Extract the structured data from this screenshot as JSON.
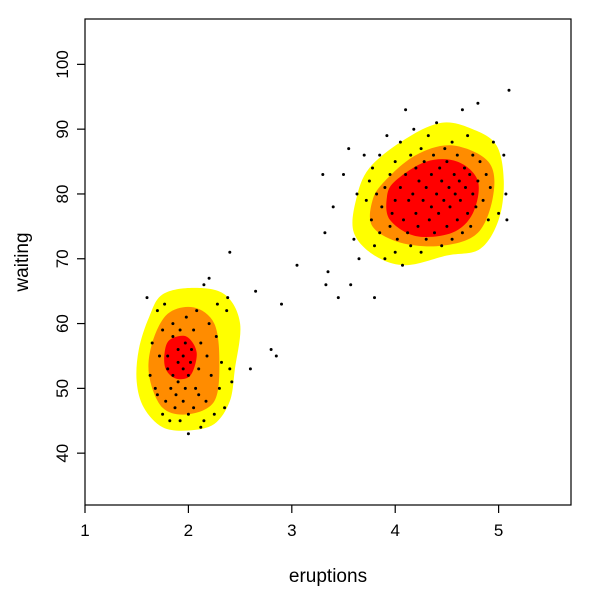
{
  "chart_data": {
    "type": "scatter",
    "subtype": "scatter with filled 2D density contours",
    "xlabel": "eruptions",
    "ylabel": "waiting",
    "xlim": [
      1,
      5.7
    ],
    "ylim": [
      32,
      107
    ],
    "x_ticks": [
      1,
      2,
      3,
      4,
      5
    ],
    "x_tick_labels": [
      "1",
      "2",
      "3",
      "4",
      "5"
    ],
    "y_ticks": [
      40,
      50,
      60,
      70,
      80,
      90,
      100
    ],
    "y_tick_labels": [
      "40",
      "50",
      "60",
      "70",
      "80",
      "90",
      "100"
    ],
    "grid": false,
    "legend": "none",
    "density_levels": [
      {
        "level": "outer",
        "color": "#ffff00"
      },
      {
        "level": "middle",
        "color": "#ff8c00"
      },
      {
        "level": "inner",
        "color": "#ff0000"
      }
    ],
    "clusters": [
      {
        "mode": [
          1.95,
          54.5
        ],
        "regions": {
          "outer": [
            [
              1.75,
              64.5
            ],
            [
              2.05,
              65.5
            ],
            [
              2.35,
              64.5
            ],
            [
              2.5,
              60
            ],
            [
              2.45,
              53
            ],
            [
              2.4,
              48
            ],
            [
              2.25,
              44.5
            ],
            [
              2.0,
              43.5
            ],
            [
              1.75,
              44
            ],
            [
              1.57,
              47
            ],
            [
              1.5,
              51
            ],
            [
              1.52,
              56
            ],
            [
              1.62,
              61
            ]
          ],
          "middle": [
            [
              1.8,
              61.5
            ],
            [
              2.05,
              62.5
            ],
            [
              2.25,
              60
            ],
            [
              2.3,
              54
            ],
            [
              2.25,
              48
            ],
            [
              2.0,
              46
            ],
            [
              1.75,
              47
            ],
            [
              1.62,
              52
            ],
            [
              1.65,
              57
            ]
          ],
          "inner": [
            [
              1.82,
              57.5
            ],
            [
              1.98,
              58
            ],
            [
              2.08,
              55.5
            ],
            [
              2.02,
              52
            ],
            [
              1.88,
              51.5
            ],
            [
              1.78,
              53
            ],
            [
              1.77,
              55.5
            ]
          ]
        }
      },
      {
        "mode": [
          4.35,
          80
        ],
        "regions": {
          "outer": [
            [
              3.75,
              84
            ],
            [
              4.1,
              88.5
            ],
            [
              4.45,
              91
            ],
            [
              4.75,
              90
            ],
            [
              4.98,
              87.5
            ],
            [
              5.05,
              82
            ],
            [
              5.0,
              76
            ],
            [
              4.82,
              71.5
            ],
            [
              4.5,
              70.5
            ],
            [
              4.1,
              69
            ],
            [
              3.8,
              70.5
            ],
            [
              3.6,
              74
            ],
            [
              3.62,
              79
            ]
          ],
          "middle": [
            [
              3.9,
              82
            ],
            [
              4.2,
              86
            ],
            [
              4.55,
              87.5
            ],
            [
              4.9,
              85
            ],
            [
              4.95,
              80
            ],
            [
              4.8,
              74
            ],
            [
              4.45,
              72
            ],
            [
              4.05,
              72.5
            ],
            [
              3.78,
              75
            ],
            [
              3.78,
              79
            ]
          ],
          "inner": [
            [
              4.0,
              82
            ],
            [
              4.3,
              85
            ],
            [
              4.6,
              85
            ],
            [
              4.8,
              82
            ],
            [
              4.75,
              77
            ],
            [
              4.55,
              74
            ],
            [
              4.2,
              73.5
            ],
            [
              3.95,
              76
            ],
            [
              3.92,
              79.5
            ]
          ]
        }
      }
    ],
    "points": [
      [
        1.6,
        64
      ],
      [
        1.7,
        62
      ],
      [
        1.65,
        57
      ],
      [
        1.63,
        52
      ],
      [
        1.7,
        49
      ],
      [
        1.75,
        46
      ],
      [
        1.78,
        48
      ],
      [
        1.8,
        53
      ],
      [
        1.8,
        55
      ],
      [
        1.82,
        45
      ],
      [
        1.85,
        52
      ],
      [
        1.85,
        58
      ],
      [
        1.85,
        60
      ],
      [
        1.87,
        47
      ],
      [
        1.88,
        49
      ],
      [
        1.9,
        51
      ],
      [
        1.9,
        54
      ],
      [
        1.9,
        56
      ],
      [
        1.92,
        45
      ],
      [
        1.92,
        59
      ],
      [
        1.95,
        48
      ],
      [
        1.95,
        53
      ],
      [
        1.95,
        55
      ],
      [
        1.97,
        50
      ],
      [
        1.97,
        57
      ],
      [
        1.98,
        61
      ],
      [
        2.0,
        43
      ],
      [
        2.0,
        46
      ],
      [
        2.0,
        52
      ],
      [
        2.02,
        54
      ],
      [
        2.03,
        56
      ],
      [
        2.05,
        47
      ],
      [
        2.05,
        59
      ],
      [
        2.07,
        50
      ],
      [
        2.08,
        62
      ],
      [
        2.1,
        49
      ],
      [
        2.1,
        53
      ],
      [
        2.12,
        57
      ],
      [
        2.15,
        66
      ],
      [
        2.15,
        45
      ],
      [
        2.17,
        48
      ],
      [
        2.18,
        55
      ],
      [
        2.2,
        67
      ],
      [
        2.2,
        60
      ],
      [
        2.22,
        52
      ],
      [
        2.25,
        46
      ],
      [
        2.27,
        58
      ],
      [
        2.3,
        50
      ],
      [
        2.32,
        54
      ],
      [
        2.35,
        47
      ],
      [
        2.37,
        62
      ],
      [
        2.38,
        64
      ],
      [
        2.4,
        71
      ],
      [
        2.4,
        53
      ],
      [
        2.42,
        51
      ],
      [
        1.68,
        50
      ],
      [
        1.72,
        55
      ],
      [
        1.75,
        59
      ],
      [
        1.77,
        63
      ],
      [
        1.83,
        50
      ],
      [
        2.12,
        44
      ],
      [
        2.28,
        63
      ],
      [
        2.6,
        53
      ],
      [
        2.65,
        65
      ],
      [
        2.8,
        56
      ],
      [
        2.85,
        55
      ],
      [
        2.9,
        63
      ],
      [
        3.05,
        69
      ],
      [
        3.3,
        83
      ],
      [
        3.32,
        74
      ],
      [
        3.33,
        66
      ],
      [
        3.35,
        68
      ],
      [
        3.4,
        78
      ],
      [
        3.45,
        64
      ],
      [
        3.5,
        83
      ],
      [
        3.55,
        87
      ],
      [
        3.57,
        66
      ],
      [
        3.6,
        73
      ],
      [
        3.63,
        80
      ],
      [
        3.65,
        70
      ],
      [
        3.7,
        86
      ],
      [
        3.72,
        79
      ],
      [
        3.75,
        82
      ],
      [
        3.77,
        76
      ],
      [
        3.78,
        84
      ],
      [
        3.8,
        64
      ],
      [
        3.8,
        72
      ],
      [
        3.82,
        80
      ],
      [
        3.85,
        74
      ],
      [
        3.85,
        86
      ],
      [
        3.87,
        78
      ],
      [
        3.9,
        70
      ],
      [
        3.9,
        81
      ],
      [
        3.92,
        89
      ],
      [
        3.95,
        75
      ],
      [
        3.95,
        83
      ],
      [
        3.97,
        77
      ],
      [
        4.0,
        71
      ],
      [
        4.0,
        79
      ],
      [
        4.0,
        85
      ],
      [
        4.02,
        73
      ],
      [
        4.05,
        81
      ],
      [
        4.05,
        88
      ],
      [
        4.07,
        69
      ],
      [
        4.08,
        76
      ],
      [
        4.1,
        93
      ],
      [
        4.1,
        83
      ],
      [
        4.12,
        74
      ],
      [
        4.13,
        79
      ],
      [
        4.15,
        86
      ],
      [
        4.15,
        72
      ],
      [
        4.17,
        80
      ],
      [
        4.18,
        90
      ],
      [
        4.2,
        77
      ],
      [
        4.2,
        84
      ],
      [
        4.22,
        75
      ],
      [
        4.23,
        82
      ],
      [
        4.25,
        87
      ],
      [
        4.25,
        71
      ],
      [
        4.27,
        79
      ],
      [
        4.28,
        85
      ],
      [
        4.3,
        73
      ],
      [
        4.3,
        81
      ],
      [
        4.32,
        89
      ],
      [
        4.33,
        76
      ],
      [
        4.35,
        83
      ],
      [
        4.35,
        78
      ],
      [
        4.37,
        86
      ],
      [
        4.38,
        74
      ],
      [
        4.4,
        80
      ],
      [
        4.4,
        91
      ],
      [
        4.42,
        77
      ],
      [
        4.43,
        84
      ],
      [
        4.45,
        72
      ],
      [
        4.45,
        82
      ],
      [
        4.47,
        79
      ],
      [
        4.48,
        87
      ],
      [
        4.5,
        75
      ],
      [
        4.5,
        85
      ],
      [
        4.52,
        81
      ],
      [
        4.53,
        78
      ],
      [
        4.55,
        88
      ],
      [
        4.55,
        73
      ],
      [
        4.57,
        83
      ],
      [
        4.58,
        80
      ],
      [
        4.6,
        76
      ],
      [
        4.6,
        86
      ],
      [
        4.62,
        82
      ],
      [
        4.63,
        79
      ],
      [
        4.65,
        93
      ],
      [
        4.65,
        74
      ],
      [
        4.67,
        84
      ],
      [
        4.68,
        81
      ],
      [
        4.7,
        77
      ],
      [
        4.7,
        89
      ],
      [
        4.72,
        83
      ],
      [
        4.73,
        75
      ],
      [
        4.75,
        80
      ],
      [
        4.75,
        86
      ],
      [
        4.78,
        78
      ],
      [
        4.8,
        94
      ],
      [
        4.8,
        82
      ],
      [
        4.82,
        85
      ],
      [
        4.85,
        79
      ],
      [
        4.88,
        83
      ],
      [
        4.9,
        76
      ],
      [
        4.92,
        81
      ],
      [
        4.95,
        88
      ],
      [
        5.0,
        77
      ],
      [
        5.05,
        86
      ],
      [
        5.07,
        80
      ],
      [
        5.08,
        76
      ],
      [
        5.1,
        96
      ]
    ]
  }
}
